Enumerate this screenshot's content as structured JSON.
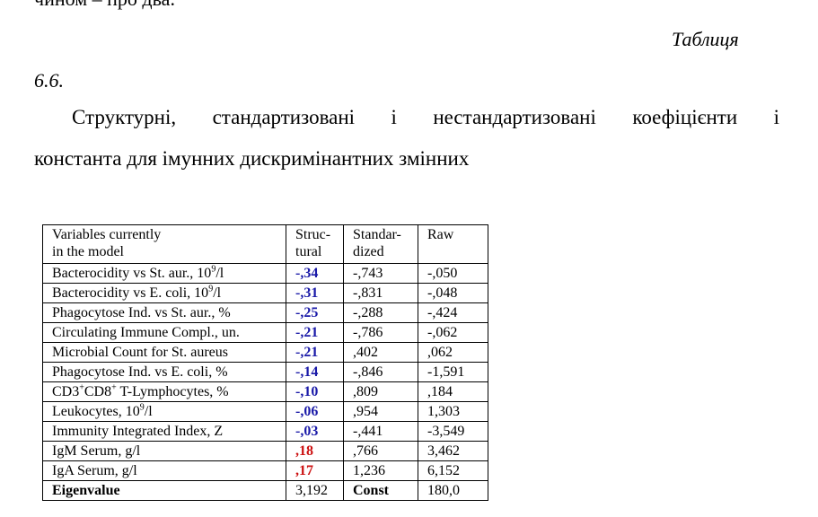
{
  "top_text": "чином – про два.",
  "caption": {
    "label": "Таблиця",
    "number": "6.6."
  },
  "title_line1_words": [
    "Структурні,",
    "стандартизовані",
    "і",
    "нестандартизовані",
    "коефіцієнти",
    "і"
  ],
  "title_line2": "константа для імунних дискримінантних змінних",
  "table": {
    "headers": {
      "variables": [
        "Variables currently",
        "in the model"
      ],
      "structural": [
        "Struc-",
        "tural"
      ],
      "standardized": [
        "Standar-",
        "dized"
      ],
      "raw": [
        "Raw"
      ]
    },
    "rows": [
      {
        "pre": "Bacterocidity vs St. aur., 10",
        "sup": "9",
        "post": "/l",
        "structural": "-,34",
        "standardized": "-,743",
        "raw": "-,050",
        "color": "#1a1aa8"
      },
      {
        "pre": "Bacterocidity vs E. coli, 10",
        "sup": "9",
        "post": "/l",
        "structural": "-,31",
        "standardized": "-,831",
        "raw": "-,048",
        "color": "#1a1aa8"
      },
      {
        "pre": "Phagocytose Ind. vs St. aur., %",
        "structural": "-,25",
        "standardized": "-,288",
        "raw": "-,424",
        "color": "#1a1aa8"
      },
      {
        "pre": "Circulating Immune Compl., un.",
        "structural": "-,21",
        "standardized": "-,786",
        "raw": "-,062",
        "color": "#1a1aa8"
      },
      {
        "pre": "Microbial Count for St. aureus",
        "structural": "-,21",
        "standardized": ",402",
        "raw": ",062",
        "color": "#1a1aa8"
      },
      {
        "pre": "Phagocytose Ind. vs E. coli, %",
        "structural": "-,14",
        "standardized": "-,846",
        "raw": "-1,591",
        "color": "#1a1aa8"
      },
      {
        "pre": "CD3",
        "sup": "+",
        "mid": "CD8",
        "sup2": "+",
        "post": " T-Lymphocytes, %",
        "structural": "-,10",
        "standardized": ",809",
        "raw": ",184",
        "color": "#1a1aa8"
      },
      {
        "pre": "Leukocytes, 10",
        "sup": "9",
        "post": "/l",
        "structural": "-,06",
        "standardized": ",954",
        "raw": "1,303",
        "color": "#1a1aa8"
      },
      {
        "pre": "Immunity Integrated Index, Z",
        "structural": "-,03",
        "standardized": "-,441",
        "raw": "-3,549",
        "color": "#1a1aa8"
      },
      {
        "pre": "IgM Serum, g/l",
        "structural": ",18",
        "standardized": ",766",
        "raw": "3,462",
        "color": "#cc1111"
      },
      {
        "pre": "IgA Serum, g/l",
        "structural": ",17",
        "standardized": "1,236",
        "raw": "6,152",
        "color": "#cc1111"
      }
    ],
    "footer": {
      "label": "Eigenvalue",
      "eigenvalue": "3,192",
      "const_label": "Const",
      "const_value": "180,0"
    }
  }
}
